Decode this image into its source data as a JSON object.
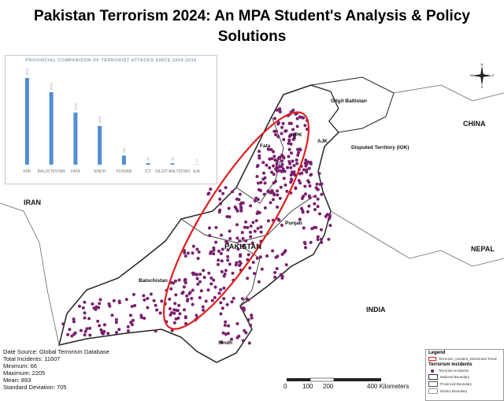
{
  "title": "Pakistan Terrorism 2024: An MPA Student's Analysis & Policy Solutions",
  "inset": {
    "title": "PROVINCIAL COMPARISON OF TERRORIST ATTACKS SINCE 2004-2016"
  },
  "chart_data": {
    "type": "bar",
    "title": "PROVINCIAL COMPARISON OF TERRORIST ATTACKS SINCE 2004-2016",
    "categories": [
      "KPK",
      "BALOCHISTAN",
      "FATA",
      "SINDH",
      "PUNJAB",
      "ICT",
      "GILGIT-BALTISTAN",
      "AJK"
    ],
    "values": [
      3669,
      3067,
      2205,
      1636,
      383,
      66,
      58,
      12
    ],
    "value_labels": [
      "3669",
      "3067",
      "2205",
      "1636",
      "383",
      "66",
      "58",
      "12"
    ],
    "color": "#4f8fd0",
    "ylim": [
      0,
      4000
    ]
  },
  "map": {
    "labels": {
      "gilgit": "Gilgit Baltistan",
      "china": "CHINA",
      "disputed": "Disputed Territory (IOK)",
      "ajk": "AJK",
      "kpk": "KPK",
      "fata": "Fata",
      "iran": "IRAN",
      "pakistan": "PAKISTAN",
      "punjab": "Punjab",
      "balochistan": "Balochistan",
      "nepal": "NEPAL",
      "india": "INDIA",
      "sindh": "Sindh"
    },
    "colors": {
      "land": "#ffffff",
      "ocean": "#f2f2f2",
      "incident": "#7a1f6e",
      "trend": "#e02020",
      "border": "#333333"
    }
  },
  "stats": {
    "source": "Date Source: Global Terrorism Database",
    "total": "Total Incidents:  11607",
    "minimum": "Minimum:   66",
    "maximum": "Maximum:   2205",
    "mean": "Mean:   893",
    "std": "Standard Deviation:   705"
  },
  "legend": {
    "title": "Legend",
    "trend": "Terrorism_Incident_Directional Trend",
    "incidents_header": "Terrorism incidents",
    "incidents": "Terrorism Incidents",
    "national": "National Boundary",
    "provincial": "Provincial Boundary",
    "district": "District Boundary"
  },
  "scale": {
    "ticks": [
      "0",
      "100",
      "200",
      "400 Kilometers"
    ]
  },
  "compass": {
    "n": "N",
    "s": "S",
    "e": "E",
    "w": "W"
  }
}
